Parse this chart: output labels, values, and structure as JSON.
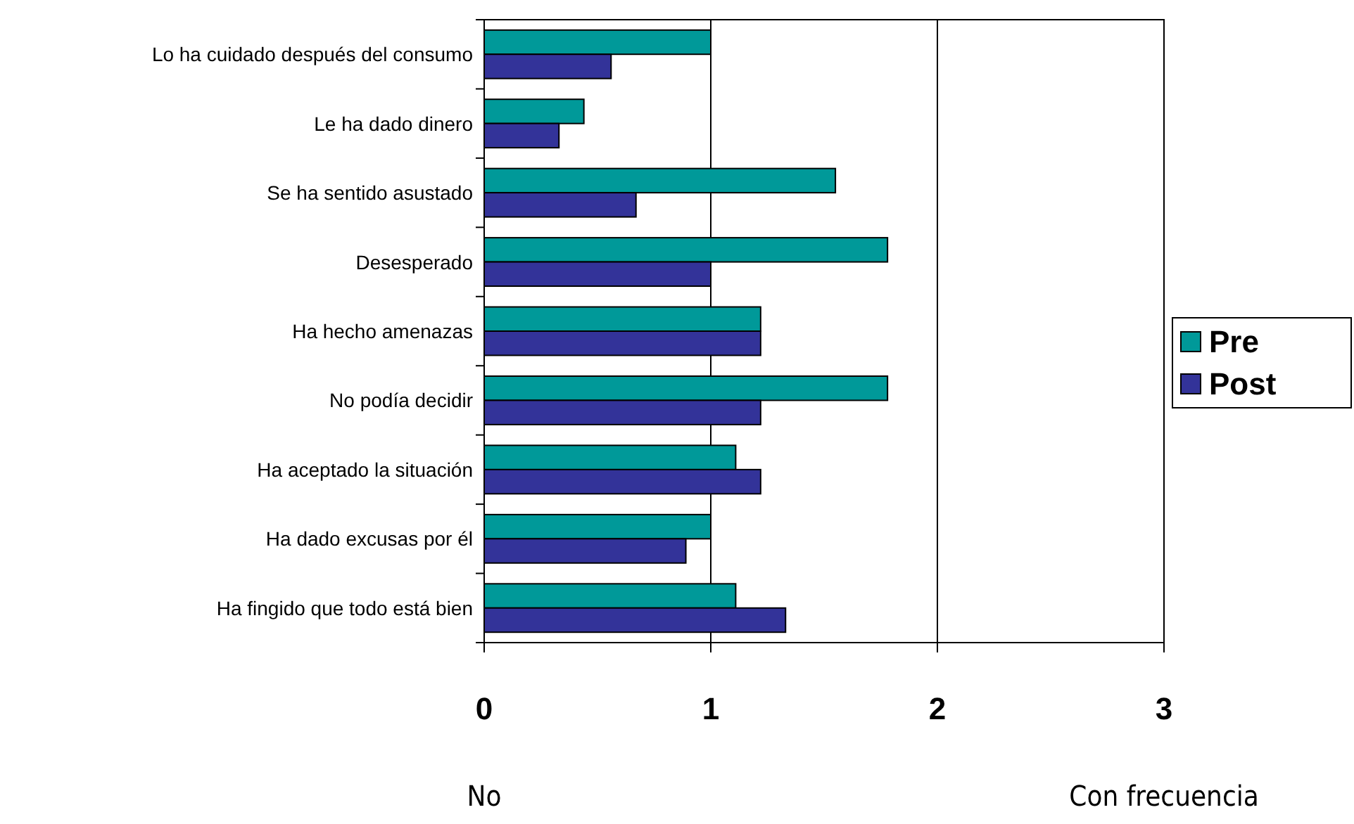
{
  "chart_data": {
    "type": "bar",
    "orientation": "horizontal",
    "categories": [
      "Lo ha cuidado después del consumo",
      "Le ha dado dinero",
      "Se ha sentido asustado",
      "Desesperado",
      "Ha hecho amenazas",
      "No podía decidir",
      "Ha aceptado la situación",
      "Ha dado excusas por él",
      "Ha fingido que todo está bien"
    ],
    "series": [
      {
        "name": "Pre",
        "color": "#009999",
        "values": [
          1.0,
          0.44,
          1.55,
          1.78,
          1.22,
          1.78,
          1.11,
          1.0,
          1.11
        ]
      },
      {
        "name": "Post",
        "color": "#333399",
        "values": [
          0.56,
          0.33,
          0.67,
          1.0,
          1.22,
          1.22,
          1.22,
          0.89,
          1.33
        ]
      }
    ],
    "xlim": [
      0,
      3
    ],
    "xticks": [
      0,
      1,
      2,
      3
    ],
    "grid": "x",
    "legend": "right",
    "annotations": [
      "No",
      "Con frecuencia"
    ]
  }
}
